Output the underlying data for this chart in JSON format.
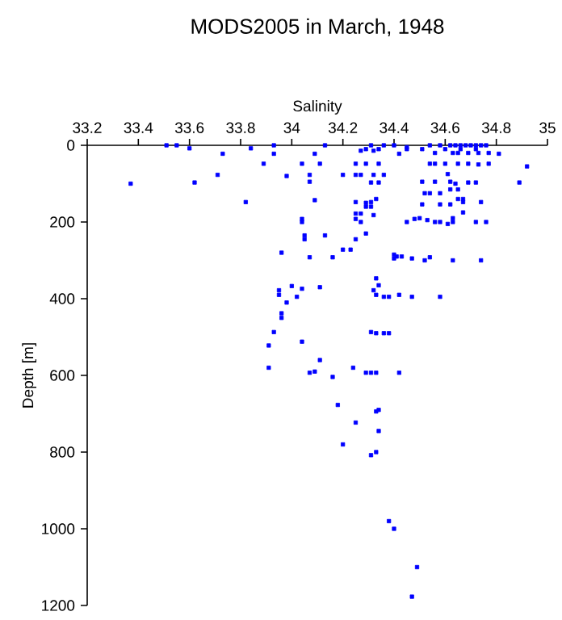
{
  "chart_data": {
    "type": "scatter",
    "title": "MODS2005 in March, 1948",
    "xlabel": "Salinity",
    "ylabel": "Depth [m]",
    "xlim": [
      33.2,
      35
    ],
    "xticks": [
      33.2,
      33.4,
      33.6,
      33.8,
      34,
      34.2,
      34.4,
      34.6,
      34.8,
      35
    ],
    "ylim": [
      1200,
      0
    ],
    "yticks": [
      0,
      200,
      400,
      600,
      800,
      1000,
      1200
    ],
    "marker": "square",
    "series": [
      {
        "color": "#0000ff",
        "x": [
          33.51,
          33.55,
          33.6,
          33.84,
          33.93,
          34.13,
          34.31,
          34.36,
          34.4,
          34.45,
          34.54,
          34.58,
          34.62,
          34.64,
          34.66,
          34.68,
          34.7,
          34.72,
          34.74,
          34.76,
          34.6,
          34.66,
          34.72,
          33.73,
          33.93,
          34.09,
          34.27,
          34.29,
          34.32,
          34.34,
          34.42,
          34.45,
          34.51,
          34.56,
          34.63,
          34.65,
          34.69,
          34.73,
          34.77,
          34.81,
          33.89,
          34.04,
          34.11,
          34.25,
          34.29,
          34.34,
          34.54,
          34.56,
          34.6,
          34.65,
          34.69,
          34.73,
          34.77,
          34.92,
          33.37,
          33.62,
          33.71,
          33.98,
          34.07,
          34.2,
          34.25,
          34.27,
          34.32,
          34.36,
          34.61,
          34.07,
          34.31,
          34.34,
          34.51,
          34.56,
          34.62,
          34.64,
          34.69,
          34.72,
          34.89,
          34.65,
          34.62,
          34.52,
          34.54,
          34.58,
          34.65,
          34.67,
          33.82,
          34.09,
          34.25,
          34.29,
          34.31,
          34.33,
          34.51,
          34.58,
          34.62,
          34.67,
          34.74,
          34.29,
          34.31,
          34.25,
          34.27,
          34.32,
          34.67,
          34.04,
          34.25,
          34.27,
          34.48,
          34.5,
          34.04,
          34.45,
          34.56,
          34.58,
          34.61,
          34.63,
          34.72,
          34.76,
          34.53,
          34.63,
          34.29,
          34.05,
          34.13,
          34.05,
          34.25,
          34.2,
          34.23,
          33.96,
          34.4,
          34.41,
          34.43,
          34.07,
          34.16,
          34.4,
          34.47,
          34.52,
          34.54,
          34.63,
          34.74,
          34.33,
          34.0,
          34.34,
          34.04,
          34.11,
          33.95,
          34.32,
          34.33,
          34.36,
          34.38,
          34.42,
          34.47,
          34.58,
          34.02,
          33.98,
          33.95,
          33.96,
          33.96,
          34.31,
          34.33,
          34.36,
          34.38,
          33.93,
          34.04,
          33.91,
          34.11,
          33.91,
          34.24,
          34.07,
          34.09,
          34.29,
          34.31,
          34.33,
          34.42,
          34.16,
          34.18,
          34.33,
          34.34,
          34.25,
          34.34,
          34.2,
          34.33,
          34.31,
          34.38,
          34.4,
          34.49,
          34.47
        ],
        "values": [
          0,
          0,
          8,
          8,
          0,
          0,
          0,
          0,
          0,
          5,
          0,
          0,
          0,
          0,
          0,
          0,
          0,
          0,
          0,
          0,
          10,
          10,
          10,
          22,
          22,
          22,
          14,
          10,
          14,
          10,
          22,
          10,
          10,
          20,
          20,
          20,
          20,
          20,
          20,
          22,
          48,
          48,
          48,
          48,
          48,
          48,
          48,
          48,
          48,
          48,
          48,
          50,
          48,
          55,
          100,
          97,
          77,
          80,
          77,
          77,
          77,
          77,
          77,
          77,
          75,
          95,
          97,
          97,
          95,
          95,
          95,
          100,
          97,
          97,
          97,
          115,
          115,
          125,
          125,
          125,
          140,
          140,
          148,
          143,
          148,
          150,
          148,
          140,
          154,
          154,
          154,
          148,
          148,
          160,
          160,
          178,
          178,
          182,
          175,
          192,
          192,
          200,
          192,
          190,
          200,
          200,
          200,
          200,
          205,
          200,
          200,
          200,
          195,
          190,
          230,
          235,
          235,
          245,
          245,
          272,
          272,
          280,
          285,
          290,
          290,
          292,
          292,
          295,
          295,
          300,
          292,
          300,
          300,
          347,
          367,
          365,
          374,
          370,
          378,
          378,
          390,
          395,
          395,
          390,
          395,
          395,
          395,
          410,
          390,
          438,
          450,
          487,
          490,
          490,
          490,
          487,
          512,
          522,
          560,
          580,
          580,
          593,
          590,
          593,
          593,
          593,
          593,
          604,
          677,
          694,
          690,
          723,
          745,
          780,
          800,
          808,
          980,
          1000,
          1100,
          1177
        ]
      }
    ]
  }
}
